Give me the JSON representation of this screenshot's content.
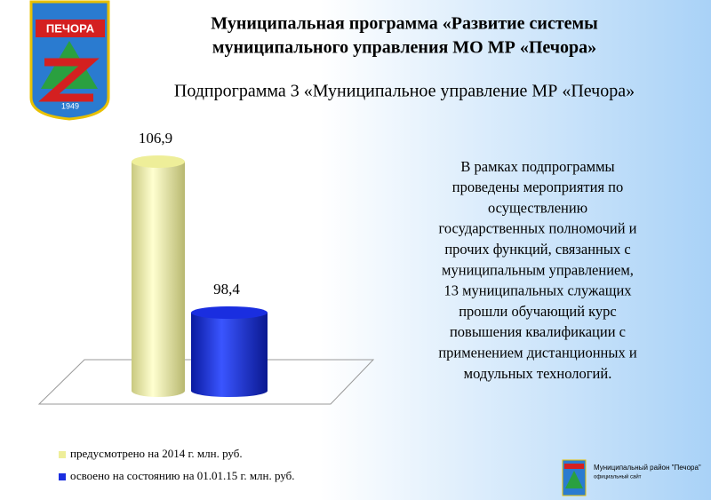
{
  "header": {
    "logo_text": "ПЕЧОРА",
    "logo_year": "1949",
    "title": [
      "Муниципальная программа «Развитие системы",
      "муниципального управления МО МР «Печора»"
    ],
    "subtitle": "Подпрограмма 3 «Муниципальное управление МР «Печора»"
  },
  "body": [
    "В рамках подпрограммы",
    "проведены мероприятия по",
    "осуществлению",
    "государственных полномочий и",
    "прочих функций, связанных с",
    "муниципальным управлением,",
    "13 муниципальных служащих",
    "прошли обучающий курс",
    "повышения квалификации с",
    "применением дистанционных и",
    "модульных технологий."
  ],
  "footer": {
    "name": "Муниципальный район \"Печора\"",
    "caption": "официальный сайт"
  },
  "chart_data": {
    "type": "bar",
    "categories": [
      null
    ],
    "ylim": [
      94,
      108
    ],
    "series": [
      {
        "name": "предусмотрено на 2014 г. млн. руб.",
        "color": "#eeee99",
        "values": [
          106.9
        ],
        "value_labels": [
          "106,9"
        ]
      },
      {
        "name": "освоено на состоянию на 01.01.15 г. млн. руб.",
        "color": "#1a2ee0",
        "values": [
          98.4
        ],
        "value_labels": [
          "98,4"
        ]
      }
    ]
  }
}
